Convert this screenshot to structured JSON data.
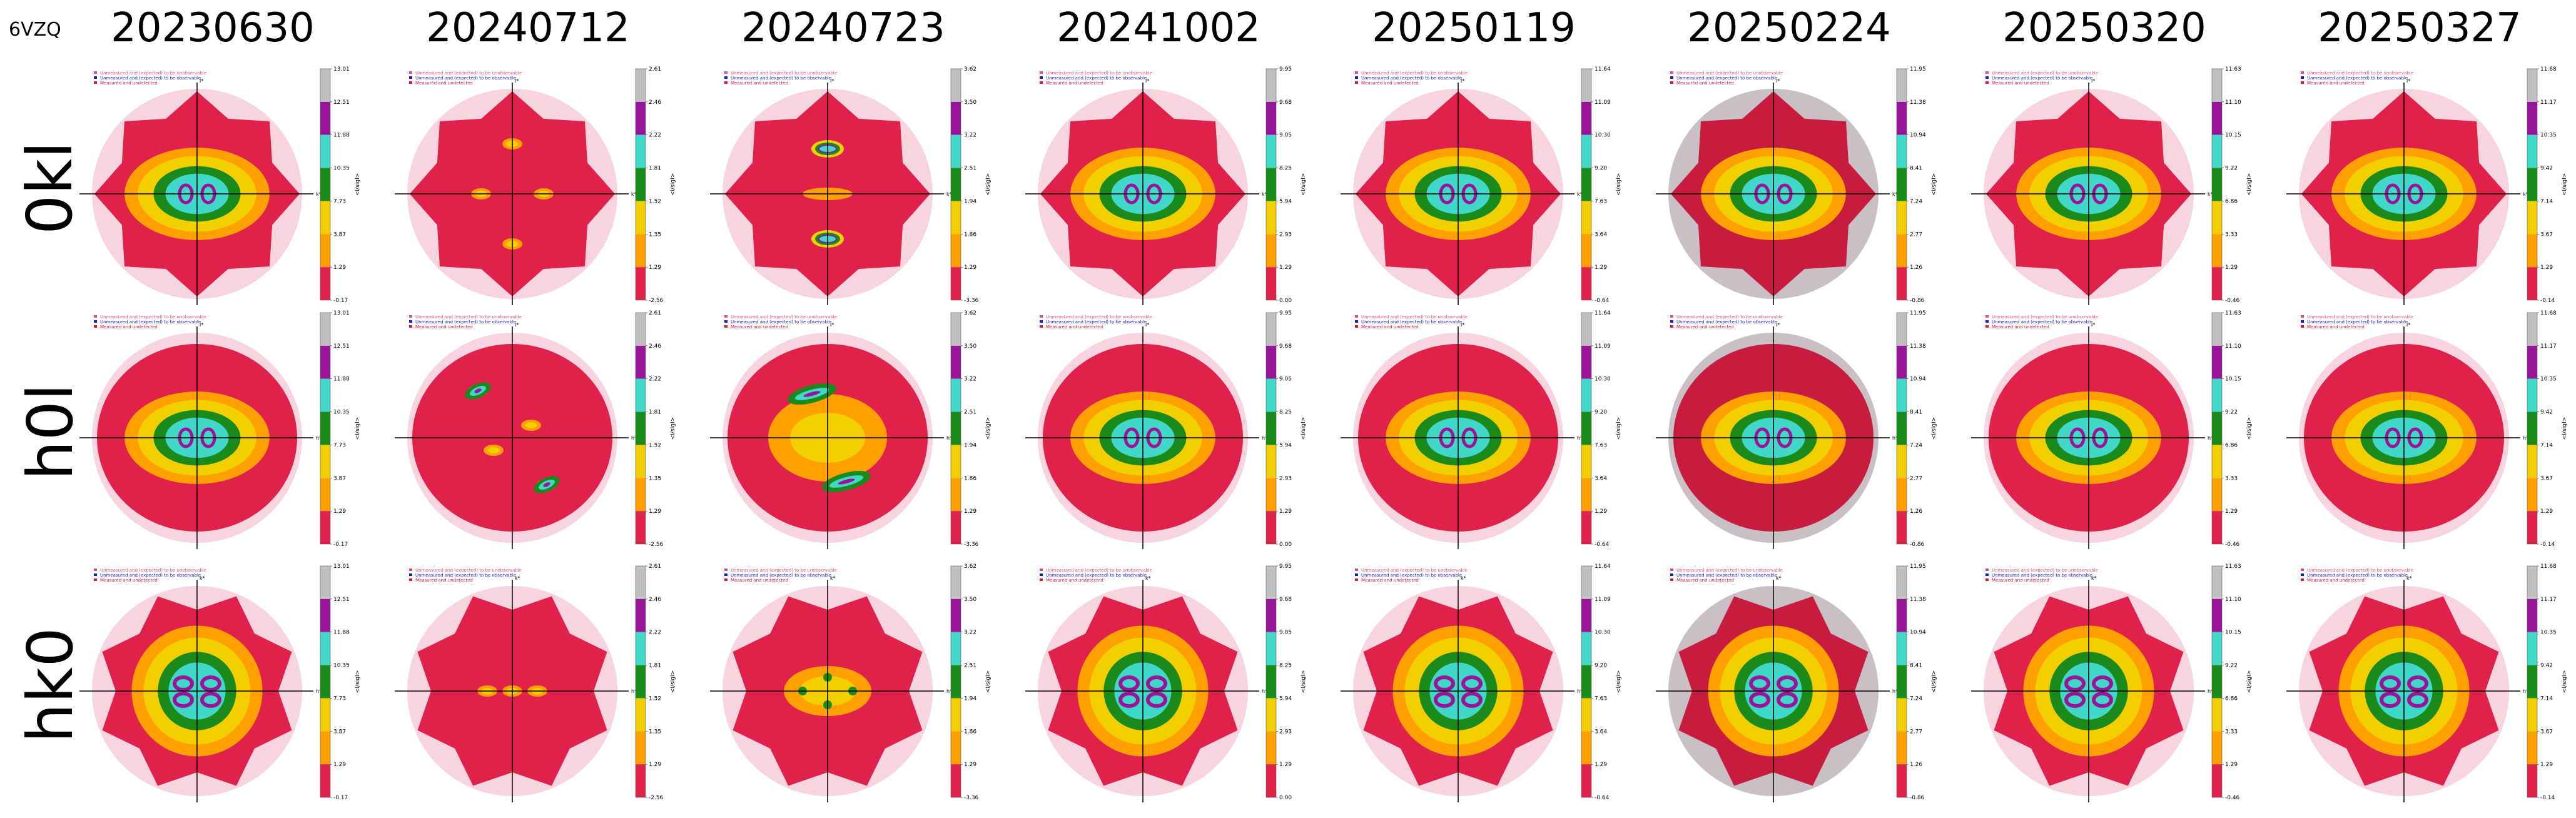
{
  "pdb_id": "6VZQ",
  "columns": [
    {
      "date": "20230630",
      "ticks": [
        "13.01",
        "12.51",
        "11.88",
        "10.35",
        "7.73",
        "3.87",
        "1.29",
        "-0.17"
      ],
      "variant": "full"
    },
    {
      "date": "20240712",
      "ticks": [
        "2.61",
        "2.46",
        "2.22",
        "1.81",
        "1.52",
        "1.35",
        "1.29",
        "-2.56"
      ],
      "variant": "sparse"
    },
    {
      "date": "20240723",
      "ticks": [
        "3.62",
        "3.50",
        "3.22",
        "2.51",
        "1.94",
        "1.86",
        "1.29",
        "-3.36"
      ],
      "variant": "sparse"
    },
    {
      "date": "20241002",
      "ticks": [
        "9.95",
        "9.68",
        "9.05",
        "8.25",
        "5.94",
        "2.93",
        "1.29",
        "0.00"
      ],
      "variant": "full"
    },
    {
      "date": "20250119",
      "ticks": [
        "11.64",
        "11.09",
        "10.30",
        "9.20",
        "7.63",
        "3.64",
        "1.29",
        "-0.64"
      ],
      "variant": "full"
    },
    {
      "date": "20250224",
      "ticks": [
        "11.95",
        "11.38",
        "10.94",
        "8.41",
        "7.24",
        "2.77",
        "1.26",
        "-0.86"
      ],
      "variant": "dark"
    },
    {
      "date": "20250320",
      "ticks": [
        "11.63",
        "11.10",
        "10.15",
        "9.22",
        "6.86",
        "3.33",
        "1.29",
        "-0.46"
      ],
      "variant": "full"
    },
    {
      "date": "20250327",
      "ticks": [
        "11.68",
        "11.17",
        "10.35",
        "9.42",
        "7.14",
        "3.67",
        "1.29",
        "-0.14"
      ],
      "variant": "full"
    }
  ],
  "rows": [
    {
      "label": "0kl",
      "h_axis": "k*",
      "v_axis": "l*"
    },
    {
      "label": "h0l",
      "h_axis": "h*",
      "v_axis": "l*"
    },
    {
      "label": "hk0",
      "h_axis": "h*",
      "v_axis": "k*"
    }
  ],
  "legend": [
    {
      "text": "Unmeasured and (expected) to be unobservable",
      "color": "#e05080"
    },
    {
      "text": "Unmeasured and (expected) to be observable",
      "color": "#2020c0"
    },
    {
      "text": "Measured and undetected",
      "color": "#d02040"
    }
  ],
  "colorbar_label": "<I/sigI>",
  "colors": {
    "pink_bg": "#f7d4de",
    "dark_bg": "#c8c0c4",
    "red": "#e0224a",
    "orange": "#ff9f00",
    "yellow": "#f3cf00",
    "green": "#1a8a1a",
    "cyan": "#40d8c8",
    "purple": "#9a149a",
    "gray": "#c0c0c0"
  }
}
